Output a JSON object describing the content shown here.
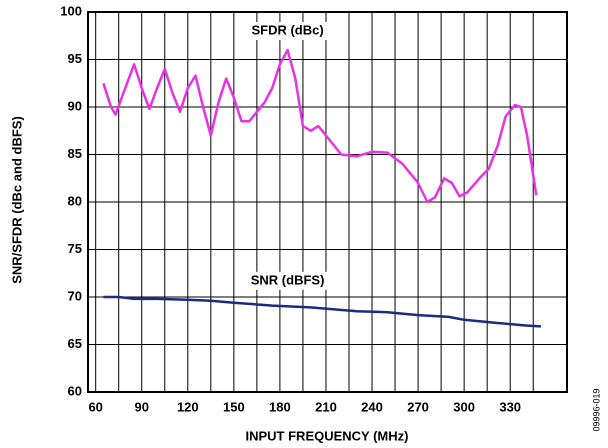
{
  "chart_data": {
    "type": "line",
    "xlabel": "INPUT FREQUENCY (MHz)",
    "ylabel": "SNR/SFDR (dBc and dBFS)",
    "figure_id": "09996-019",
    "xlim": [
      55,
      367
    ],
    "xticks": [
      60,
      90,
      120,
      150,
      180,
      210,
      240,
      270,
      300,
      330
    ],
    "x_minor_ticks": [
      75,
      105,
      135,
      165,
      195,
      225,
      255,
      285,
      315,
      345
    ],
    "ylim": [
      60,
      100
    ],
    "yticks": [
      60,
      65,
      70,
      75,
      80,
      85,
      90,
      95,
      100
    ],
    "grid": true,
    "series": [
      {
        "name": "SFDR (dBc)",
        "color": "#e633e6",
        "x": [
          65,
          70,
          73,
          77,
          85,
          90,
          95,
          100,
          105,
          110,
          115,
          120,
          125,
          130,
          135,
          140,
          145,
          150,
          155,
          160,
          165,
          170,
          175,
          180,
          185,
          190,
          195,
          200,
          205,
          210,
          215,
          220,
          230,
          240,
          250,
          260,
          270,
          276,
          281,
          287,
          292,
          297,
          302,
          310,
          316,
          322,
          327,
          333,
          337,
          341,
          347
        ],
        "values": [
          92.5,
          90,
          89.2,
          91,
          94.5,
          92,
          89.8,
          92,
          94,
          91.5,
          89.5,
          92,
          93.3,
          90,
          87,
          90.5,
          93,
          91,
          88.5,
          88.5,
          89.5,
          90.5,
          92,
          94.5,
          96,
          93,
          88,
          87.5,
          88,
          87,
          86,
          85,
          84.8,
          85.3,
          85.2,
          84,
          82,
          80,
          80.5,
          82.5,
          82,
          80.6,
          81,
          82.5,
          83.5,
          86,
          89,
          90.2,
          90,
          87,
          80.7
        ],
        "label_x": 185,
        "label_y": 98
      },
      {
        "name": "SNR (dBFS)",
        "color": "#1c2a82",
        "x": [
          65,
          75,
          85,
          100,
          120,
          135,
          150,
          175,
          200,
          230,
          250,
          270,
          290,
          300,
          320,
          340,
          350
        ],
        "values": [
          70,
          70,
          69.8,
          69.8,
          69.7,
          69.6,
          69.4,
          69.1,
          68.9,
          68.5,
          68.4,
          68.1,
          67.9,
          67.6,
          67.3,
          67,
          66.9
        ],
        "label_x": 185,
        "label_y": 71.7
      }
    ]
  }
}
